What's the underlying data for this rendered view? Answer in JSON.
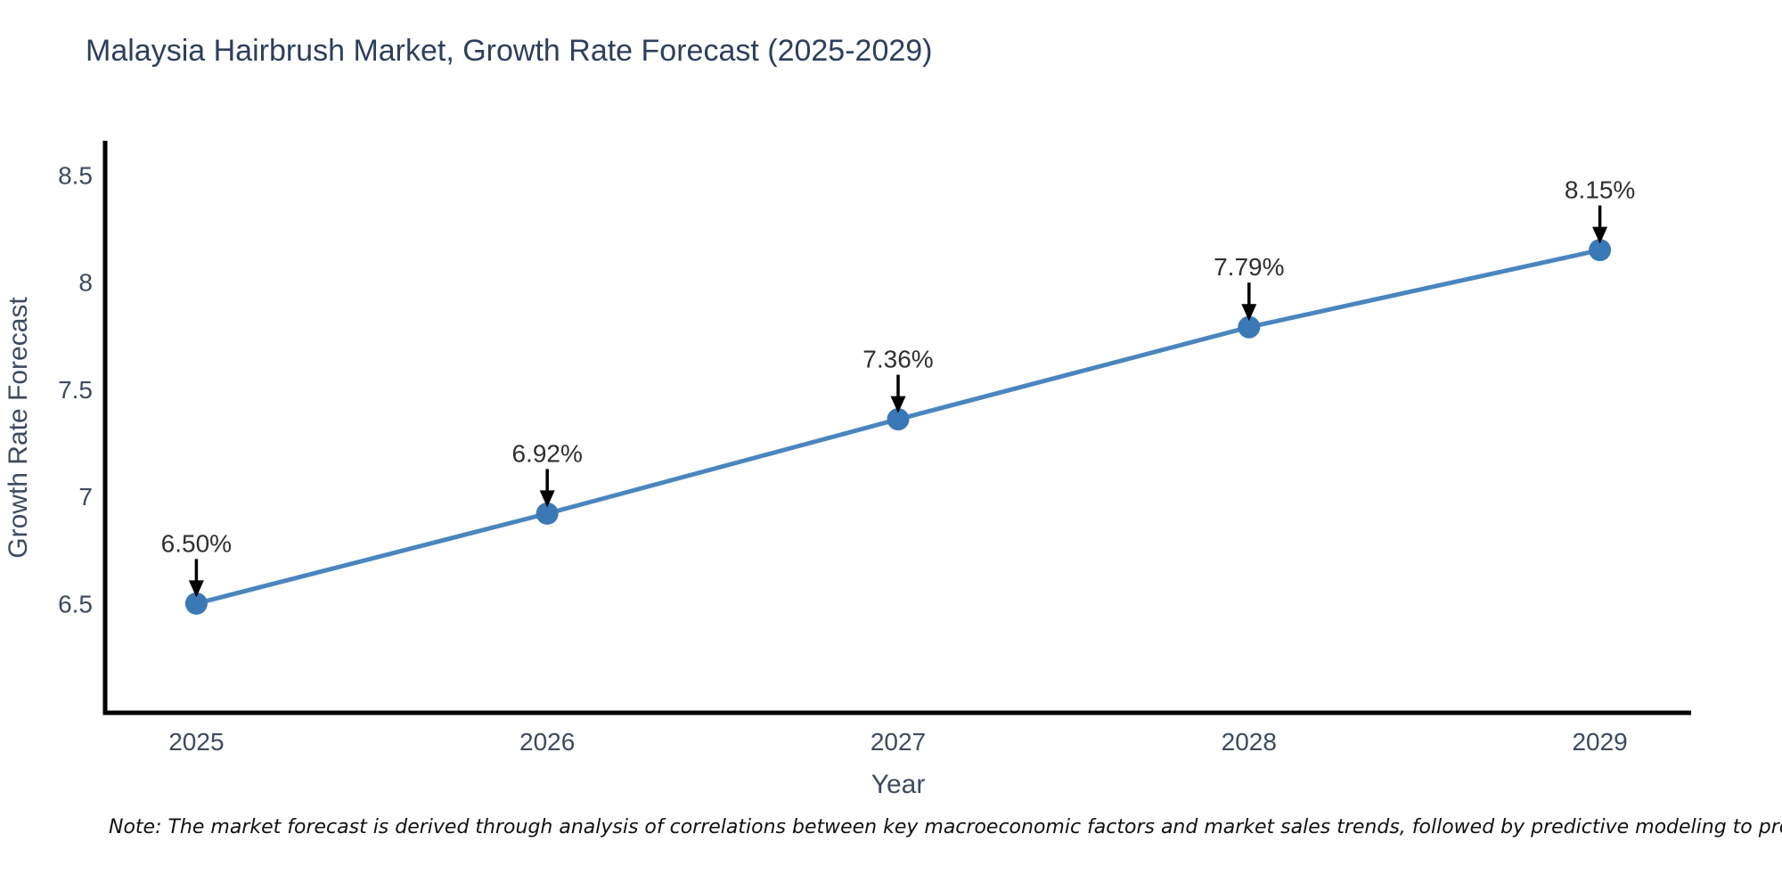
{
  "chart_data": {
    "type": "line",
    "title": "Malaysia Hairbrush Market, Growth Rate Forecast (2025-2029)",
    "xlabel": "Year",
    "ylabel": "Growth Rate Forecast",
    "x": [
      2025,
      2026,
      2027,
      2028,
      2029
    ],
    "values": [
      6.5,
      6.92,
      7.36,
      7.79,
      8.15
    ],
    "point_labels": [
      "6.50%",
      "6.92%",
      "7.36%",
      "7.79%",
      "8.15%"
    ],
    "series": [
      {
        "name": "Growth Rate Forecast",
        "values": [
          6.5,
          6.92,
          7.36,
          7.79,
          8.15
        ]
      }
    ],
    "xtick_labels": [
      "2025",
      "2026",
      "2027",
      "2028",
      "2029"
    ],
    "yticks": [
      6.5,
      7.0,
      7.5,
      8.0,
      8.5
    ],
    "ytick_labels": [
      "6.5",
      "7",
      "7.5",
      "8",
      "8.5"
    ],
    "xlim": [
      2024.74,
      2029.26
    ],
    "ylim": [
      5.99,
      8.66
    ],
    "grid": false,
    "legend": "none",
    "line_color": "#4a86be",
    "marker_color": "#3a79b5",
    "spine_color": "#000000",
    "annotation_arrow_color": "#000000",
    "title_color": "#2e3f5c",
    "tick_color": "#3e4a5e"
  },
  "note": "Note: The market forecast is derived through analysis of correlations between key macroeconomic factors and market sales trends, followed by predictive modeling to project future sales"
}
